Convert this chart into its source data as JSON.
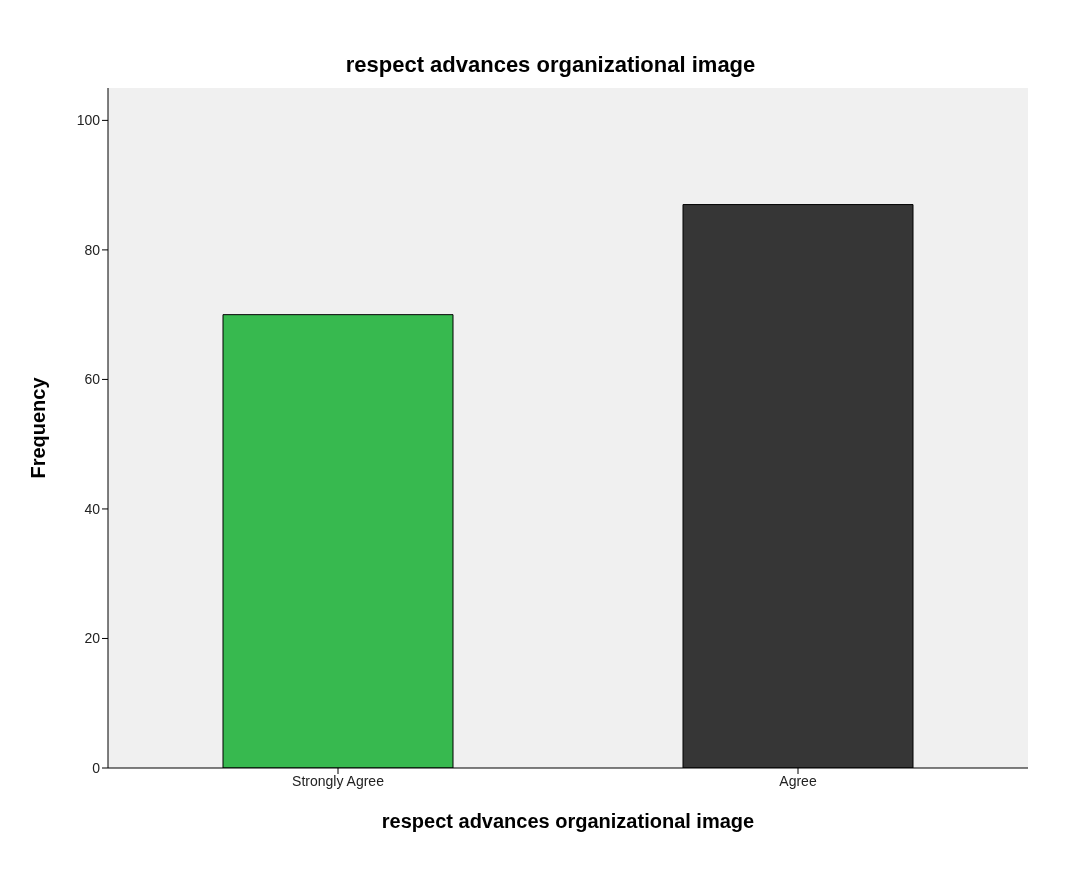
{
  "chart_data": {
    "type": "bar",
    "title": "respect advances organizational image",
    "xlabel": "respect advances organizational image",
    "ylabel": "Frequency",
    "categories": [
      "Strongly Agree",
      "Agree"
    ],
    "values": [
      70,
      87
    ],
    "colors": [
      "#37b94f",
      "#363636"
    ],
    "ylim": [
      0,
      105
    ],
    "yticks": [
      0,
      20,
      40,
      60,
      80,
      100
    ]
  }
}
